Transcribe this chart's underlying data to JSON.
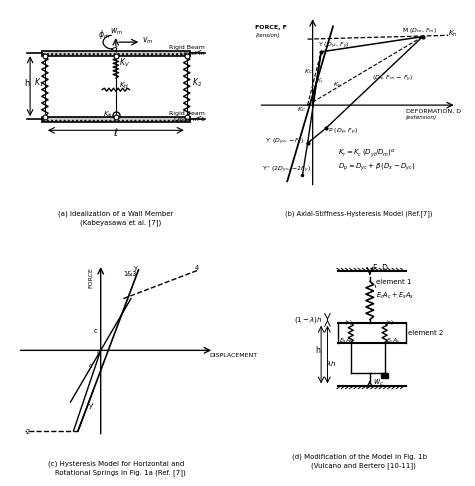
{
  "line_color": "#000000",
  "caption_a": "(a) Idealization of a Wall Member\n    (Kabeyasawa et al. [7])",
  "caption_b": "(b) Axial-Stiffness-Hysteresis Model (Ref.[7])",
  "caption_c": "(c) Hysteresis Model for Horizontal and\n    Rotational Springs in Fig. 1a (Ref. [7])",
  "caption_d": "(d) Modification of the Model in Fig. 1b\n    (Vulcano and Bertero [10-11])"
}
